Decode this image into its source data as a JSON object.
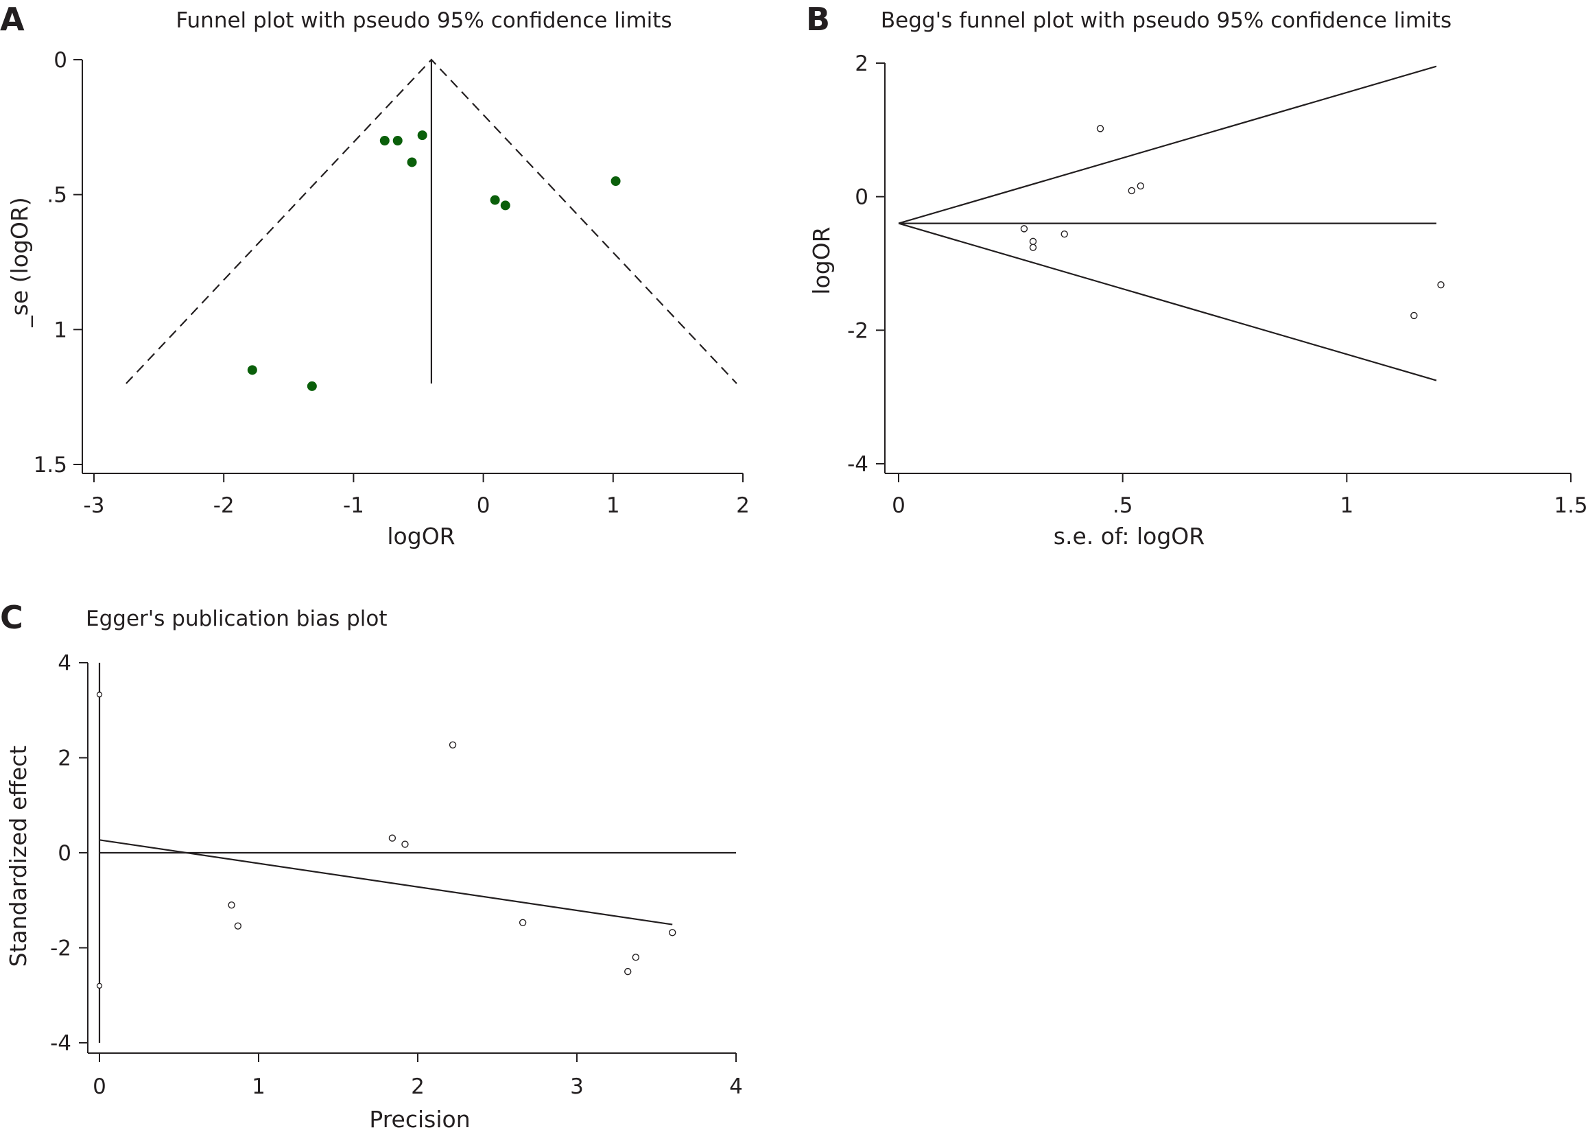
{
  "chart_data": [
    {
      "panel": "A",
      "type": "scatter",
      "title": "Funnel plot with pseudo 95% confidence limits",
      "xlabel": "logOR",
      "ylabel": "_se (logOR)",
      "xlim": [
        -3,
        2
      ],
      "ylim": [
        0,
        1.5
      ],
      "y_reversed": true,
      "xticks": [
        "-3",
        "-2",
        "-1",
        "0",
        "1",
        "2"
      ],
      "yticks": [
        "0",
        ".5",
        "1",
        "1.5"
      ],
      "marker": "filled-circle",
      "marker_color": "#0a5f0a",
      "pooled_logOR": -0.4,
      "max_se": 1.2,
      "points": [
        {
          "x": -0.76,
          "y": 0.3
        },
        {
          "x": -0.66,
          "y": 0.3
        },
        {
          "x": -0.47,
          "y": 0.28
        },
        {
          "x": -0.55,
          "y": 0.38
        },
        {
          "x": 0.09,
          "y": 0.52
        },
        {
          "x": 0.17,
          "y": 0.54
        },
        {
          "x": 1.02,
          "y": 0.45
        },
        {
          "x": -1.78,
          "y": 1.15
        },
        {
          "x": -1.32,
          "y": 1.21
        }
      ]
    },
    {
      "panel": "B",
      "type": "scatter",
      "title": "Begg's funnel plot with pseudo 95% confidence limits",
      "xlabel": "s.e. of: logOR",
      "ylabel": "logOR",
      "xlim": [
        0,
        1.5
      ],
      "ylim": [
        -4,
        2
      ],
      "xticks": [
        "0",
        ".5",
        "1",
        "1.5"
      ],
      "yticks": [
        "2",
        "0",
        "-2",
        "-4"
      ],
      "marker": "hollow-circle",
      "pooled_logOR": -0.4,
      "max_se": 1.2,
      "points": [
        {
          "x": 0.45,
          "y": 1.02
        },
        {
          "x": 0.52,
          "y": 0.09
        },
        {
          "x": 0.54,
          "y": 0.16
        },
        {
          "x": 0.28,
          "y": -0.48
        },
        {
          "x": 0.3,
          "y": -0.67
        },
        {
          "x": 0.3,
          "y": -0.76
        },
        {
          "x": 0.37,
          "y": -0.56
        },
        {
          "x": 1.15,
          "y": -1.78
        },
        {
          "x": 1.21,
          "y": -1.32
        }
      ]
    },
    {
      "panel": "C",
      "type": "scatter",
      "title": "Egger's publication bias plot",
      "xlabel": "Precision",
      "ylabel": "Standardized effect",
      "xlim": [
        0,
        4
      ],
      "ylim": [
        -4,
        4
      ],
      "xticks": [
        "0",
        "1",
        "2",
        "3",
        "4"
      ],
      "yticks": [
        "4",
        "2",
        "0",
        "-2",
        "-4"
      ],
      "marker": "hollow-circle",
      "regression": {
        "x1": 0,
        "y1": 0.27,
        "x2": 3.6,
        "y2": -1.51
      },
      "intercept_ci": {
        "x": 0,
        "low": -4,
        "high": 4
      },
      "intercept_markers": [
        {
          "x": 0,
          "y": 3.33
        },
        {
          "x": 0,
          "y": -2.8
        }
      ],
      "points": [
        {
          "x": 0.83,
          "y": -1.1
        },
        {
          "x": 0.87,
          "y": -1.54
        },
        {
          "x": 1.84,
          "y": 0.31
        },
        {
          "x": 1.92,
          "y": 0.18
        },
        {
          "x": 2.22,
          "y": 2.27
        },
        {
          "x": 2.66,
          "y": -1.47
        },
        {
          "x": 3.32,
          "y": -2.5
        },
        {
          "x": 3.37,
          "y": -2.2
        },
        {
          "x": 3.6,
          "y": -1.68
        }
      ]
    }
  ]
}
